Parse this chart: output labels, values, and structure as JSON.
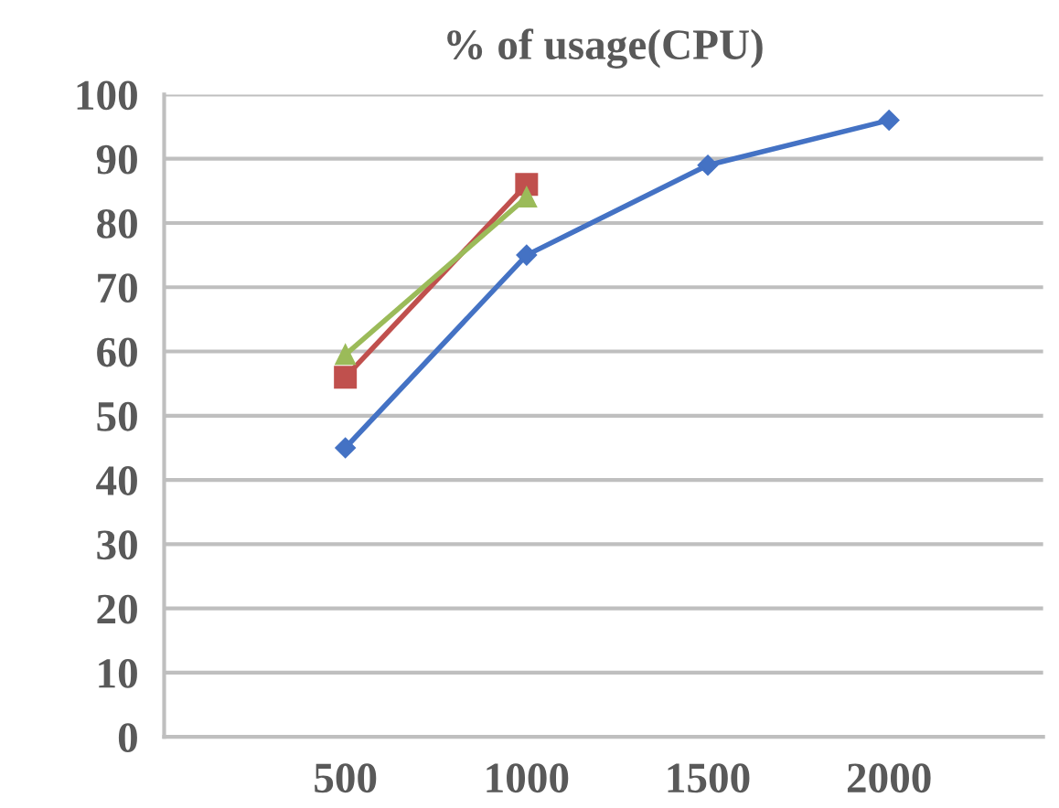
{
  "chart_data": {
    "type": "line",
    "title": "% of usage(CPU)",
    "categories": [
      "500",
      "1000",
      "1500",
      "2000"
    ],
    "series": [
      {
        "color": "#4472c4",
        "values": [
          45,
          75,
          89,
          96
        ],
        "marker": "diamond"
      },
      {
        "color": "#c0504d",
        "values": [
          56,
          86,
          null,
          null
        ],
        "marker": "square"
      },
      {
        "color": "#9bbb59",
        "values": [
          59.5,
          84,
          null,
          null
        ],
        "marker": "triangle"
      }
    ],
    "ylim": [
      0,
      100
    ],
    "yticks": [
      0,
      10,
      20,
      30,
      40,
      50,
      60,
      70,
      80,
      90,
      100
    ],
    "grid": "y"
  }
}
